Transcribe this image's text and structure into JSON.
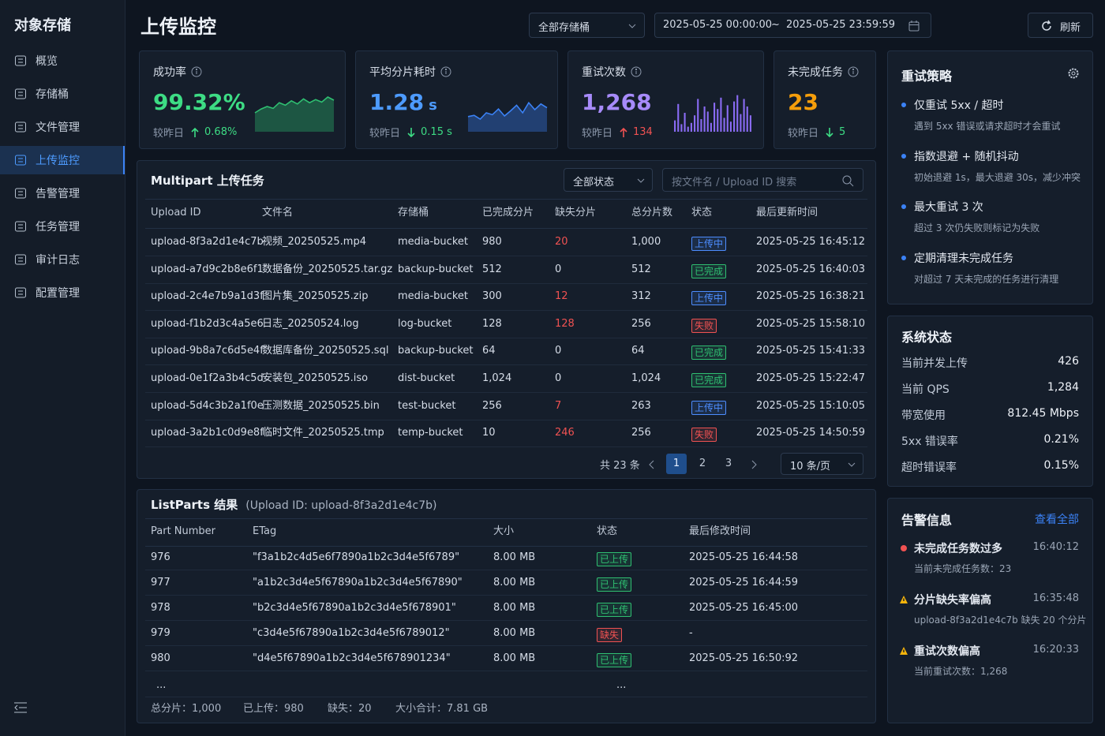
{
  "sidebar": {
    "title": "对象存储",
    "items": [
      "概览",
      "存储桶",
      "文件管理",
      "上传监控",
      "告警管理",
      "任务管理",
      "审计日志",
      "配置管理"
    ],
    "active": 3
  },
  "header": {
    "title": "上传监控",
    "bucket_select": "全部存储桶",
    "date_start": "2025-05-25 00:00:00",
    "date_separator": "~",
    "date_end": "2025-05-25 23:59:59",
    "refresh": "刷新"
  },
  "kpis": [
    {
      "label": "成功率",
      "value": "99.32%",
      "compare_label": "较昨日",
      "delta": "0.68%",
      "direction": "up",
      "value_color": "#3ddc84",
      "delta_color": "#3ddc84",
      "spark_type": "area",
      "spark_color": "#2fbf71",
      "spark_ylim": [
        0,
        60
      ],
      "spark": [
        30,
        36,
        40,
        37,
        46,
        42,
        49,
        44,
        52,
        46,
        51,
        47,
        55,
        50
      ]
    },
    {
      "label": "平均分片耗时",
      "value": "1.28",
      "unit": "s",
      "compare_label": "较昨日",
      "delta": "0.15 s",
      "direction": "down",
      "value_color": "#4d9bff",
      "delta_color": "#3ddc84",
      "spark_type": "area",
      "spark_color": "#3b82f6",
      "spark_ylim": [
        0,
        60
      ],
      "spark": [
        24,
        26,
        20,
        30,
        27,
        36,
        25,
        33,
        42,
        30,
        46,
        35,
        44,
        38
      ]
    },
    {
      "label": "重试次数",
      "value": "1,268",
      "compare_label": "较昨日",
      "delta": "134",
      "direction": "up",
      "value_color": "#a78bfa",
      "delta_color": "#f05252",
      "spark_type": "bar",
      "spark_color": "#8b6cf6",
      "spark_ylim": [
        0,
        60
      ],
      "spark": [
        18,
        44,
        12,
        30,
        8,
        14,
        26,
        52,
        20,
        40,
        32,
        14,
        46,
        36,
        54,
        22,
        42,
        16,
        48,
        58,
        28,
        52,
        40,
        26
      ]
    },
    {
      "label": "未完成任务",
      "value": "23",
      "compare_label": "较昨日",
      "delta": "5",
      "direction": "down",
      "value_color": "#f59e0b",
      "delta_color": "#3ddc84"
    }
  ],
  "tasks": {
    "title": "Multipart 上传任务",
    "status_filter": "全部状态",
    "search_placeholder": "按文件名 / Upload ID 搜索",
    "columns": [
      "Upload ID",
      "文件名",
      "存储桶",
      "已完成分片",
      "缺失分片",
      "总分片数",
      "状态",
      "最后更新时间"
    ],
    "rows": [
      [
        "upload-8f3a2d1e4c7b",
        "视频_20250525.mp4",
        "media-bucket",
        "980",
        "20",
        "1,000",
        "上传中",
        "2025-05-25 16:45:12"
      ],
      [
        "upload-a7d9c2b8e6f1",
        "数据备份_20250525.tar.gz",
        "backup-bucket",
        "512",
        "0",
        "512",
        "已完成",
        "2025-05-25 16:40:03"
      ],
      [
        "upload-2c4e7b9a1d3f",
        "图片集_20250525.zip",
        "media-bucket",
        "300",
        "12",
        "312",
        "上传中",
        "2025-05-25 16:38:21"
      ],
      [
        "upload-f1b2d3c4a5e6",
        "日志_20250524.log",
        "log-bucket",
        "128",
        "128",
        "256",
        "失败",
        "2025-05-25 15:58:10"
      ],
      [
        "upload-9b8a7c6d5e4f",
        "数据库备份_20250525.sql",
        "backup-bucket",
        "64",
        "0",
        "64",
        "已完成",
        "2025-05-25 15:41:33"
      ],
      [
        "upload-0e1f2a3b4c5d",
        "安装包_20250525.iso",
        "dist-bucket",
        "1,024",
        "0",
        "1,024",
        "已完成",
        "2025-05-25 15:22:47"
      ],
      [
        "upload-5d4c3b2a1f0e",
        "压测数据_20250525.bin",
        "test-bucket",
        "256",
        "7",
        "263",
        "上传中",
        "2025-05-25 15:10:05"
      ],
      [
        "upload-3a2b1c0d9e8f",
        "临时文件_20250525.tmp",
        "temp-bucket",
        "10",
        "246",
        "256",
        "失败",
        "2025-05-25 14:50:59"
      ]
    ],
    "status_colors": [
      "#4d8dff",
      "#2fbf71",
      "#4d8dff",
      "#f05252",
      "#2fbf71",
      "#2fbf71",
      "#4d8dff",
      "#f05252"
    ],
    "pagination": {
      "total": "共 23 条",
      "pages": [
        "1",
        "2",
        "3"
      ],
      "current": 0,
      "page_size": "10 条/页"
    }
  },
  "parts": {
    "title": "ListParts 结果",
    "subtitle": "(Upload ID: upload-8f3a2d1e4c7b)",
    "columns": [
      "Part Number",
      "ETag",
      "大小",
      "状态",
      "最后修改时间"
    ],
    "rows": [
      [
        "976",
        "\"f3a1b2c4d5e6f7890a1b2c3d4e5f6789\"",
        "8.00 MB",
        "已上传",
        "2025-05-25 16:44:58"
      ],
      [
        "977",
        "\"a1b2c3d4e5f67890a1b2c3d4e5f67890\"",
        "8.00 MB",
        "已上传",
        "2025-05-25 16:44:59"
      ],
      [
        "978",
        "\"b2c3d4e5f67890a1b2c3d4e5f678901\"",
        "8.00 MB",
        "已上传",
        "2025-05-25 16:45:00"
      ],
      [
        "979",
        "\"c3d4e5f67890a1b2c3d4e5f6789012\"",
        "8.00 MB",
        "缺失",
        "-"
      ],
      [
        "980",
        "\"d4e5f67890a1b2c3d4e5f678901234\"",
        "8.00 MB",
        "已上传",
        "2025-05-25 16:50:92"
      ]
    ],
    "status_colors": [
      "#2fbf71",
      "#2fbf71",
      "#2fbf71",
      "#f05252",
      "#2fbf71"
    ],
    "ellipsis": "...",
    "summary": [
      "总分片：1,000",
      "已上传：980",
      "缺失：20",
      "大小合计：7.81 GB"
    ]
  },
  "retry_policy": {
    "title": "重试策略",
    "items": [
      {
        "title": "仅重试 5xx / 超时",
        "desc": "遇到 5xx 错误或请求超时才会重试"
      },
      {
        "title": "指数退避 + 随机抖动",
        "desc": "初始退避 1s，最大退避 30s，减少冲突"
      },
      {
        "title": "最大重试 3 次",
        "desc": "超过 3 次仍失败则标记为失败"
      },
      {
        "title": "定期清理未完成任务",
        "desc": "对超过 7 天未完成的任务进行清理"
      }
    ]
  },
  "system_status": {
    "title": "系统状态",
    "rows": [
      {
        "label": "当前并发上传",
        "value": "426"
      },
      {
        "label": "当前 QPS",
        "value": "1,284"
      },
      {
        "label": "带宽使用",
        "value": "812.45 Mbps"
      },
      {
        "label": "5xx 错误率",
        "value": "0.21%"
      },
      {
        "label": "超时错误率",
        "value": "0.15%"
      }
    ]
  },
  "alerts": {
    "title": "告警信息",
    "view_all": "查看全部",
    "items": [
      {
        "level": "error",
        "title": "未完成任务数过多",
        "time": "16:40:12",
        "desc": "当前未完成任务数：23"
      },
      {
        "level": "warning",
        "title": "分片缺失率偏高",
        "time": "16:35:48",
        "desc": "upload-8f3a2d1e4c7b 缺失 20 个分片"
      },
      {
        "level": "warning",
        "title": "重试次数偏高",
        "time": "16:20:33",
        "desc": "当前重试次数：1,268"
      }
    ]
  }
}
